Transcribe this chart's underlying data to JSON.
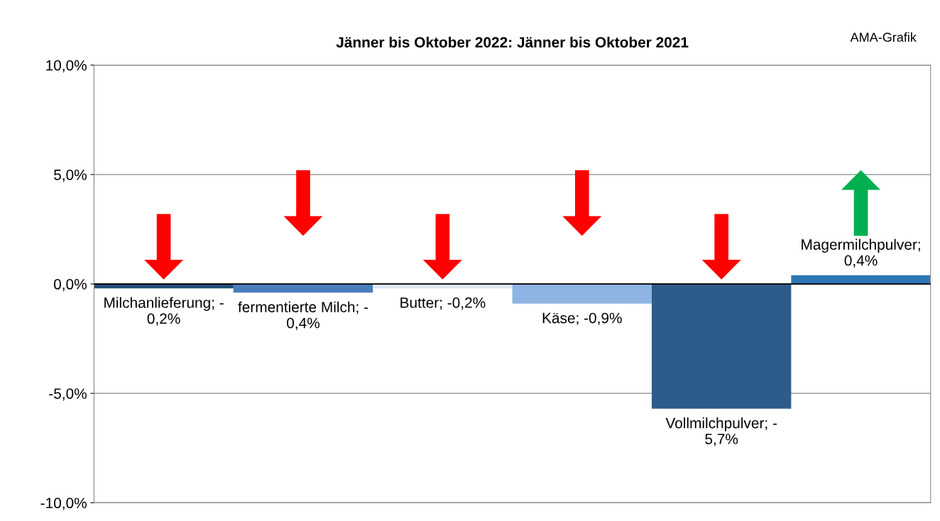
{
  "chart_data": {
    "type": "bar",
    "title": "Jänner bis Oktober 2022: Jänner bis Oktober 2021",
    "categories": [
      null,
      null,
      null,
      null,
      null,
      null
    ],
    "values": [
      -0.2,
      -0.4,
      -0.2,
      -0.9,
      -5.7,
      0.4
    ],
    "colors": [
      "#1f4e79",
      "#4a7ebb",
      "#dce6f2",
      "#8eb4e3",
      "#2e5c8a",
      "#2e75b6"
    ],
    "value_labels": [
      "Milchanlieferung; -\n0,2%",
      "fermentierte Milch; -\n0,4%",
      "Butter; -0,2%",
      "Käse; -0,9%",
      "Vollmilchpulver; -\n5,7%",
      "Magermilchpulver;\n0,4%"
    ],
    "ylim": [
      -10,
      10
    ],
    "yticks": [
      {
        "value": -10,
        "label": "-10,0%"
      },
      {
        "value": -5,
        "label": "-5,0%"
      },
      {
        "value": 0,
        "label": "0,0%"
      },
      {
        "value": 5,
        "label": "5,0%"
      },
      {
        "value": 10,
        "label": "10,0%"
      }
    ],
    "grid": "y",
    "legend": false,
    "annotations": [
      "AMA-Grafik"
    ]
  }
}
